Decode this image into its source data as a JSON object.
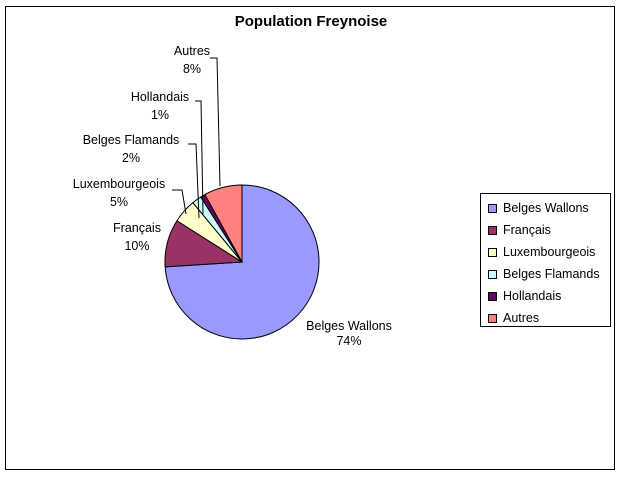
{
  "chart_data": {
    "type": "pie",
    "title": "Population Freynoise",
    "slices": [
      {
        "name": "Belges Wallons",
        "value": 74,
        "label": "74%",
        "color": "#9999FF"
      },
      {
        "name": "Français",
        "value": 10,
        "label": "10%",
        "color": "#993366"
      },
      {
        "name": "Luxembourgeois",
        "value": 5,
        "label": "5%",
        "color": "#FFFFCC"
      },
      {
        "name": "Belges Flamands",
        "value": 2,
        "label": "2%",
        "color": "#CCFFFF"
      },
      {
        "name": "Hollandais",
        "value": 1,
        "label": "1%",
        "color": "#660066"
      },
      {
        "name": "Autres",
        "value": 8,
        "label": "8%",
        "color": "#FF8080"
      }
    ],
    "start_angle_deg": 0,
    "direction": "clockwise",
    "legend_position": "right",
    "slice_borders": "#000000"
  }
}
